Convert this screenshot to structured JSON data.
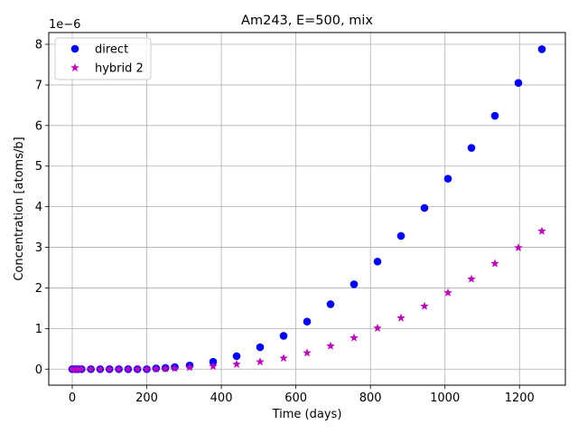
{
  "chart_data": {
    "type": "scatter",
    "title": "Am243, E=500, mix",
    "xlabel": "Time (days)",
    "ylabel": "Concentration [atoms/b]",
    "y_offset_label": "1e−6",
    "xlim": [
      -63,
      1323
    ],
    "ylim": [
      -3.95e-07,
      8.29e-06
    ],
    "xticks": [
      0,
      200,
      400,
      600,
      800,
      1000,
      1200
    ],
    "xtick_labels": [
      "0",
      "200",
      "400",
      "600",
      "800",
      "1000",
      "1200"
    ],
    "yticks": [
      0,
      1e-06,
      2e-06,
      3e-06,
      4e-06,
      5e-06,
      6e-06,
      7e-06,
      8e-06
    ],
    "ytick_labels": [
      "0",
      "1",
      "2",
      "3",
      "4",
      "5",
      "6",
      "7",
      "8"
    ],
    "grid": true,
    "legend_position": "top-left",
    "series": [
      {
        "name": "direct",
        "marker": "circle",
        "color": "#0000ff",
        "x": [
          0,
          8,
          15,
          25,
          50,
          75,
          100,
          125,
          150,
          175,
          200,
          225,
          250,
          275,
          315,
          378,
          441,
          504,
          567,
          630,
          693,
          756,
          819,
          882,
          945,
          1008,
          1071,
          1134,
          1197,
          1260
        ],
        "y": [
          0,
          0,
          0,
          0,
          0,
          0,
          0,
          0,
          0,
          0,
          0,
          2e-08,
          3e-08,
          5e-08,
          9e-08,
          1.8e-07,
          3.2e-07,
          5.4e-07,
          8.2e-07,
          1.17e-06,
          1.6e-06,
          2.09e-06,
          2.65e-06,
          3.28e-06,
          3.97e-06,
          4.69e-06,
          5.45e-06,
          6.24e-06,
          7.05e-06,
          7.88e-06
        ]
      },
      {
        "name": "hybrid 2",
        "marker": "star",
        "color": "#bf00bf",
        "x": [
          0,
          8,
          15,
          25,
          50,
          75,
          100,
          125,
          150,
          175,
          200,
          225,
          250,
          275,
          315,
          378,
          441,
          504,
          567,
          630,
          693,
          756,
          819,
          882,
          945,
          1008,
          1071,
          1134,
          1197,
          1260
        ],
        "y": [
          0,
          0,
          0,
          0,
          0,
          0,
          0,
          0,
          0,
          0,
          0,
          1e-08,
          1e-08,
          2e-08,
          4e-08,
          7e-08,
          1.2e-07,
          1.8e-07,
          2.7e-07,
          4e-07,
          5.7e-07,
          7.7e-07,
          1.01e-06,
          1.26e-06,
          1.55e-06,
          1.88e-06,
          2.22e-06,
          2.6e-06,
          2.99e-06,
          3.4e-06
        ]
      }
    ]
  }
}
